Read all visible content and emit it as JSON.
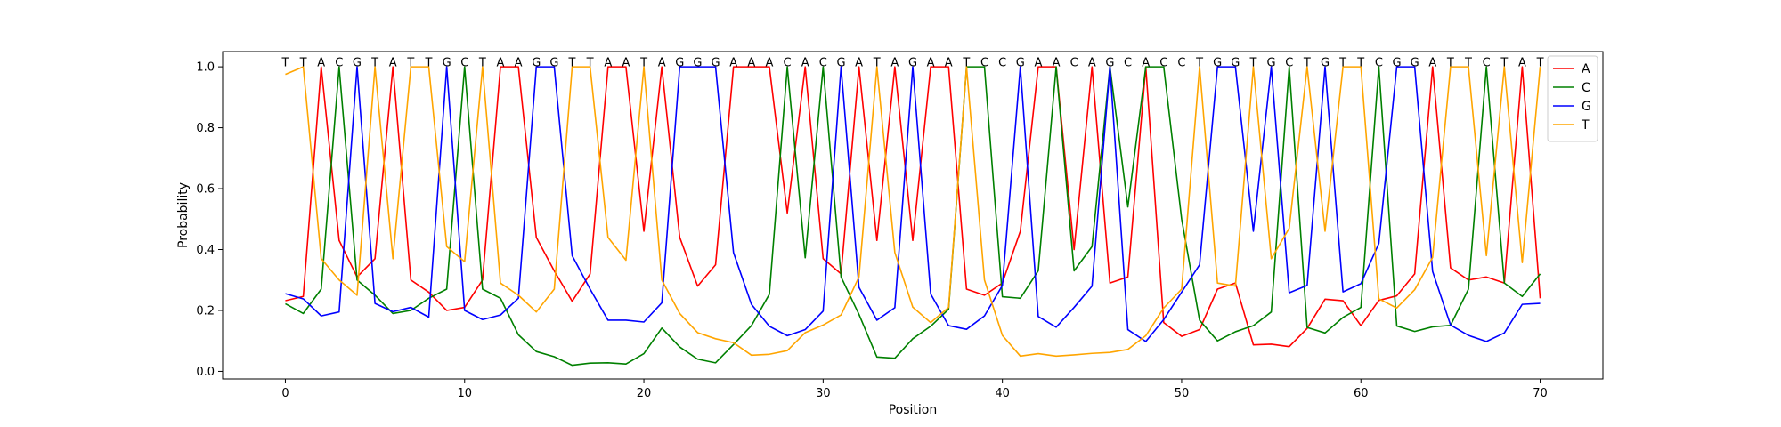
{
  "chart_data": {
    "type": "line",
    "xlabel": "Position",
    "ylabel": "Probability",
    "xlim": [
      -3.5,
      73.5
    ],
    "ylim": [
      -0.025,
      1.05
    ],
    "xticks": [
      0,
      10,
      20,
      30,
      40,
      50,
      60,
      70
    ],
    "yticks": [
      0.0,
      0.2,
      0.4,
      0.6,
      0.8,
      1.0
    ],
    "ytick_labels": [
      "0.0",
      "0.2",
      "0.4",
      "0.6",
      "0.8",
      "1.0"
    ],
    "grid": false,
    "legend_position": "top-right",
    "sequence": "TTACGTATTGCTAAGGTTAATAGGGAAACACGATAGAATCCGAACAGCACCTGGTGCTGTTCGGATTCTAT",
    "series": [
      {
        "name": "A",
        "color": "#ff0000",
        "values": [
          0.232,
          0.246,
          1.0,
          0.43,
          0.31,
          0.37,
          1.0,
          0.3,
          0.26,
          0.2,
          0.21,
          0.3,
          1.0,
          1.0,
          0.44,
          0.33,
          0.23,
          0.32,
          1.0,
          1.0,
          0.46,
          1.0,
          0.44,
          0.28,
          0.35,
          1.0,
          1.0,
          1.0,
          0.52,
          1.0,
          0.37,
          0.32,
          1.0,
          0.43,
          1.0,
          0.43,
          1.0,
          1.0,
          0.27,
          0.25,
          0.29,
          0.46,
          1.0,
          1.0,
          0.4,
          1.0,
          0.29,
          0.31,
          1.0,
          0.16,
          0.115,
          0.137,
          0.27,
          0.29,
          0.087,
          0.089,
          0.081,
          0.141,
          0.237,
          0.232,
          0.15,
          0.233,
          0.248,
          0.32,
          1.0,
          0.34,
          0.3,
          0.31,
          0.29,
          1.0,
          0.24
        ]
      },
      {
        "name": "C",
        "color": "#008000",
        "values": [
          0.222,
          0.19,
          0.27,
          1.0,
          0.3,
          0.25,
          0.19,
          0.2,
          0.24,
          0.27,
          1.0,
          0.27,
          0.24,
          0.12,
          0.065,
          0.048,
          0.02,
          0.027,
          0.028,
          0.024,
          0.058,
          0.142,
          0.08,
          0.04,
          0.028,
          0.088,
          0.15,
          0.253,
          1.0,
          0.373,
          1.0,
          0.31,
          0.187,
          0.047,
          0.043,
          0.107,
          0.148,
          0.204,
          1.0,
          1.0,
          0.245,
          0.24,
          0.33,
          1.0,
          0.33,
          0.41,
          1.0,
          0.54,
          1.0,
          1.0,
          0.5,
          0.168,
          0.1,
          0.13,
          0.15,
          0.195,
          1.0,
          0.144,
          0.126,
          0.177,
          0.21,
          1.0,
          0.149,
          0.131,
          0.146,
          0.151,
          0.27,
          1.0,
          0.29,
          0.246,
          0.32
        ]
      },
      {
        "name": "G",
        "color": "#0000ff",
        "values": [
          0.255,
          0.238,
          0.182,
          0.195,
          1.0,
          0.223,
          0.196,
          0.21,
          0.178,
          1.0,
          0.2,
          0.17,
          0.185,
          0.24,
          1.0,
          1.0,
          0.38,
          0.27,
          0.168,
          0.168,
          0.162,
          0.225,
          1.0,
          1.0,
          1.0,
          0.39,
          0.22,
          0.148,
          0.117,
          0.137,
          0.198,
          1.0,
          0.276,
          0.168,
          0.209,
          1.0,
          0.254,
          0.15,
          0.138,
          0.182,
          0.282,
          1.0,
          0.18,
          0.145,
          0.21,
          0.28,
          1.0,
          0.137,
          0.098,
          0.17,
          0.26,
          0.35,
          1.0,
          1.0,
          0.46,
          1.0,
          0.258,
          0.282,
          1.0,
          0.261,
          0.288,
          0.42,
          1.0,
          1.0,
          0.328,
          0.152,
          0.118,
          0.098,
          0.126,
          0.22,
          0.223
        ]
      },
      {
        "name": "T",
        "color": "#ffa500",
        "values": [
          0.975,
          1.0,
          0.37,
          0.3,
          0.25,
          1.0,
          0.37,
          1.0,
          1.0,
          0.41,
          0.36,
          1.0,
          0.29,
          0.25,
          0.195,
          0.27,
          1.0,
          1.0,
          0.44,
          0.365,
          1.0,
          0.3,
          0.19,
          0.127,
          0.107,
          0.094,
          0.053,
          0.056,
          0.068,
          0.127,
          0.152,
          0.185,
          0.31,
          1.0,
          0.39,
          0.211,
          0.16,
          0.21,
          1.0,
          0.3,
          0.118,
          0.05,
          0.058,
          0.05,
          0.054,
          0.059,
          0.062,
          0.072,
          0.117,
          0.208,
          0.27,
          1.0,
          0.29,
          0.28,
          1.0,
          0.37,
          0.47,
          1.0,
          0.46,
          1.0,
          1.0,
          0.238,
          0.208,
          0.268,
          0.374,
          1.0,
          1.0,
          0.38,
          1.0,
          0.357,
          1.0
        ]
      }
    ]
  }
}
